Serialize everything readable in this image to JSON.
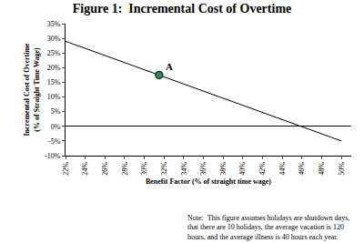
{
  "chart_data": {
    "type": "line",
    "title": "Figure 1:  Incremental Cost of Overtime",
    "x_label": "Benefit Factor (% of straight time wage)",
    "y_label": "Incremental Cost of Overtime\n(% of Straight Time Wage)",
    "x": [
      22,
      50
    ],
    "values": [
      29,
      -5
    ],
    "color": "#000000",
    "points": [
      {
        "x": 31.5,
        "y": 17.5,
        "label": "A",
        "color": "#2e8b57"
      }
    ],
    "note": "Note:  This figure assumes holidays are shutdown days,\nthat there are 10 holidays, the average vacation is 120\nhours, and the average illness is 40 hours each year.",
    "xlim": [
      22,
      51
    ],
    "xticks": [
      {
        "value": 22,
        "label": "22%"
      },
      {
        "value": 24,
        "label": "24%"
      },
      {
        "value": 26,
        "label": "26%"
      },
      {
        "value": 28,
        "label": "28%"
      },
      {
        "value": 30,
        "label": "30%"
      },
      {
        "value": 32,
        "label": "32%"
      },
      {
        "value": 34,
        "label": "34%"
      },
      {
        "value": 36,
        "label": "36%"
      },
      {
        "value": 38,
        "label": "38%"
      },
      {
        "value": 40,
        "label": "40%"
      },
      {
        "value": 42,
        "label": "42%"
      },
      {
        "value": 44,
        "label": "44%"
      },
      {
        "value": 46,
        "label": "46%"
      },
      {
        "value": 48,
        "label": "48%"
      },
      {
        "value": 50,
        "label": "50%"
      }
    ],
    "ylim": [
      -10,
      35
    ],
    "yticks": [
      {
        "value": -10,
        "label": "-10%"
      },
      {
        "value": -5,
        "label": "-5%"
      },
      {
        "value": 0,
        "label": "0%"
      },
      {
        "value": 5,
        "label": "5%"
      },
      {
        "value": 10,
        "label": "10%"
      },
      {
        "value": 15,
        "label": "15%"
      },
      {
        "value": 20,
        "label": "20%"
      },
      {
        "value": 25,
        "label": "25%"
      },
      {
        "value": 30,
        "label": "30%"
      },
      {
        "value": 35,
        "label": "35%"
      }
    ],
    "grid": false
  }
}
